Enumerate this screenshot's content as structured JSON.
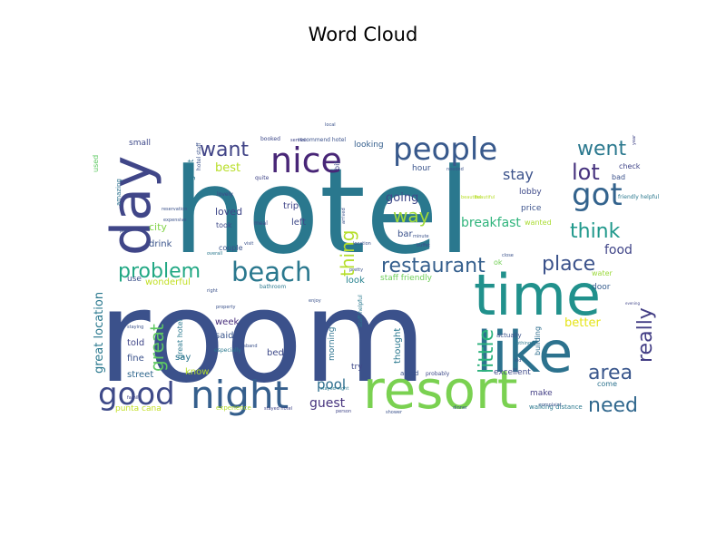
{
  "chart_data": {
    "type": "wordcloud",
    "title": "Word Cloud",
    "colormap": "viridis",
    "background": "#ffffff",
    "words": [
      {
        "text": "hotel",
        "color": "#2a788e"
      },
      {
        "text": "room",
        "color": "#3b518b"
      },
      {
        "text": "resort",
        "color": "#7ad151"
      },
      {
        "text": "time",
        "color": "#21918c"
      },
      {
        "text": "like",
        "color": "#2c728e"
      },
      {
        "text": "day",
        "color": "#404688"
      },
      {
        "text": "night",
        "color": "#355f8d"
      },
      {
        "text": "good",
        "color": "#3e4a89"
      },
      {
        "text": "people",
        "color": "#38598c"
      },
      {
        "text": "nice",
        "color": "#482677"
      },
      {
        "text": "got",
        "color": "#33638d"
      },
      {
        "text": "beach",
        "color": "#2a788e"
      },
      {
        "text": "want",
        "color": "#414487"
      },
      {
        "text": "went",
        "color": "#2a788e"
      },
      {
        "text": "lot",
        "color": "#46327e"
      },
      {
        "text": "think",
        "color": "#1f988b"
      },
      {
        "text": "problem",
        "color": "#22a884"
      },
      {
        "text": "restaurant",
        "color": "#355f8d"
      },
      {
        "text": "place",
        "color": "#3b528b"
      },
      {
        "text": "area",
        "color": "#39568c"
      },
      {
        "text": "need",
        "color": "#31688e"
      },
      {
        "text": "really",
        "color": "#433e85"
      },
      {
        "text": "little",
        "color": "#2db27d"
      },
      {
        "text": "great",
        "color": "#5ec962"
      },
      {
        "text": "thing",
        "color": "#b5de2b"
      },
      {
        "text": "way",
        "color": "#a0da39"
      },
      {
        "text": "breakfast",
        "color": "#2fb47c"
      },
      {
        "text": "stay",
        "color": "#3b528b"
      },
      {
        "text": "going",
        "color": "#3e4989"
      },
      {
        "text": "food",
        "color": "#404588"
      },
      {
        "text": "best",
        "color": "#b8de29"
      },
      {
        "text": "pool",
        "color": "#2e6e8e"
      },
      {
        "text": "guest",
        "color": "#46337e"
      },
      {
        "text": "great location",
        "color": "#2a788e"
      },
      {
        "text": "better",
        "color": "#e5e419"
      },
      {
        "text": "loved",
        "color": "#3f4788"
      },
      {
        "text": "city",
        "color": "#84d44b"
      },
      {
        "text": "drink",
        "color": "#3a548c"
      },
      {
        "text": "week",
        "color": "#472d7b"
      },
      {
        "text": "said",
        "color": "#39558c"
      },
      {
        "text": "say",
        "color": "#2b748e"
      },
      {
        "text": "told",
        "color": "#404688"
      },
      {
        "text": "fine",
        "color": "#3b528b"
      },
      {
        "text": "street",
        "color": "#31688e"
      },
      {
        "text": "know",
        "color": "#b5de2b"
      },
      {
        "text": "wonderful",
        "color": "#c2df23"
      },
      {
        "text": "punta cana",
        "color": "#c2df23"
      },
      {
        "text": "staff friendly",
        "color": "#6ece58"
      },
      {
        "text": "look",
        "color": "#26828e"
      },
      {
        "text": "excellent",
        "color": "#3e4a89"
      },
      {
        "text": "make",
        "color": "#433e85"
      },
      {
        "text": "come",
        "color": "#2c728e"
      },
      {
        "text": "door",
        "color": "#365d8d"
      },
      {
        "text": "water",
        "color": "#9bd93c"
      },
      {
        "text": "left",
        "color": "#3e4989"
      },
      {
        "text": "trip",
        "color": "#404588"
      },
      {
        "text": "bar",
        "color": "#3b528b"
      },
      {
        "text": "thought",
        "color": "#2a788e"
      },
      {
        "text": "morning",
        "color": "#2c728e"
      },
      {
        "text": "bed",
        "color": "#3e4a89"
      },
      {
        "text": "try",
        "color": "#3f4889"
      },
      {
        "text": "hour",
        "color": "#3a548c"
      },
      {
        "text": "looking",
        "color": "#355f8d"
      },
      {
        "text": "lobby",
        "color": "#3e4a89"
      },
      {
        "text": "price",
        "color": "#3b528b"
      },
      {
        "text": "wanted",
        "color": "#aadc32"
      },
      {
        "text": "hotel great",
        "color": "#2a788e"
      },
      {
        "text": "small",
        "color": "#3e4989"
      },
      {
        "text": "amazing",
        "color": "#2c728e"
      },
      {
        "text": "used",
        "color": "#5ec962"
      },
      {
        "text": "check",
        "color": "#404588"
      },
      {
        "text": "bad",
        "color": "#3b528b"
      },
      {
        "text": "use",
        "color": "#3b518b"
      },
      {
        "text": "took",
        "color": "#3e4a89"
      },
      {
        "text": "couple",
        "color": "#3b528b"
      },
      {
        "text": "bit",
        "color": "#3e4989"
      },
      {
        "text": "great hotel",
        "color": "#2a788e"
      },
      {
        "text": "building",
        "color": "#2e6e8e"
      },
      {
        "text": "actually",
        "color": "#3b528b"
      },
      {
        "text": "ok",
        "color": "#73d056"
      },
      {
        "text": "walking distance",
        "color": "#2a788e"
      },
      {
        "text": "asked",
        "color": "#3b528b"
      },
      {
        "text": "probably",
        "color": "#3e4a89"
      },
      {
        "text": "staff helpful",
        "color": "#2a788e"
      },
      {
        "text": "hotel staff",
        "color": "#3b528b"
      },
      {
        "text": "recommend hotel",
        "color": "#3b528b"
      },
      {
        "text": "booked",
        "color": "#3e4989"
      },
      {
        "text": "service",
        "color": "#404588"
      },
      {
        "text": "stayed hotel",
        "color": "#404588"
      },
      {
        "text": "stayed night",
        "color": "#2a788e"
      },
      {
        "text": "dinner",
        "color": "#3b528b"
      },
      {
        "text": "complaint",
        "color": "#3b528b"
      },
      {
        "text": "expensive",
        "color": "#3b528b"
      },
      {
        "text": "experience",
        "color": "#b5de2b"
      },
      {
        "text": "friendly helpful",
        "color": "#2a788e"
      },
      {
        "text": "lovely",
        "color": "#404588"
      },
      {
        "text": "beautiful",
        "color": "#b8de29"
      },
      {
        "text": "enjoy",
        "color": "#3b528b"
      },
      {
        "text": "bathroom",
        "color": "#2a788e"
      },
      {
        "text": "reservation",
        "color": "#3b528b"
      },
      {
        "text": "staying",
        "color": "#3b528b"
      },
      {
        "text": "family",
        "color": "#404588"
      },
      {
        "text": "husband",
        "color": "#3b528b"
      },
      {
        "text": "especially",
        "color": "#2a788e"
      },
      {
        "text": "property",
        "color": "#3b528b"
      },
      {
        "text": "pretty",
        "color": "#3b528b"
      },
      {
        "text": "minute",
        "color": "#3b528b"
      },
      {
        "text": "buffet",
        "color": "#3e4989"
      },
      {
        "text": "visit",
        "color": "#3b528b"
      },
      {
        "text": "meal",
        "color": "#404588"
      },
      {
        "text": "overall",
        "color": "#2a788e"
      },
      {
        "text": "right",
        "color": "#3b528b"
      },
      {
        "text": "close",
        "color": "#3b528b"
      },
      {
        "text": "quite",
        "color": "#404588"
      },
      {
        "text": "local",
        "color": "#3b528b"
      },
      {
        "text": "pay",
        "color": "#3b528b"
      },
      {
        "text": "kid",
        "color": "#3b528b"
      },
      {
        "text": "nothing",
        "color": "#2a788e"
      },
      {
        "text": "evening",
        "color": "#404588"
      },
      {
        "text": "beautiful",
        "color": "#b8de29"
      },
      {
        "text": "arrived",
        "color": "#3b528b"
      },
      {
        "text": "shower",
        "color": "#3b528b"
      },
      {
        "text": "person",
        "color": "#404588"
      },
      {
        "text": "needed",
        "color": "#3b528b"
      },
      {
        "text": "location",
        "color": "#3b528b"
      },
      {
        "text": "year",
        "color": "#404588"
      }
    ]
  }
}
